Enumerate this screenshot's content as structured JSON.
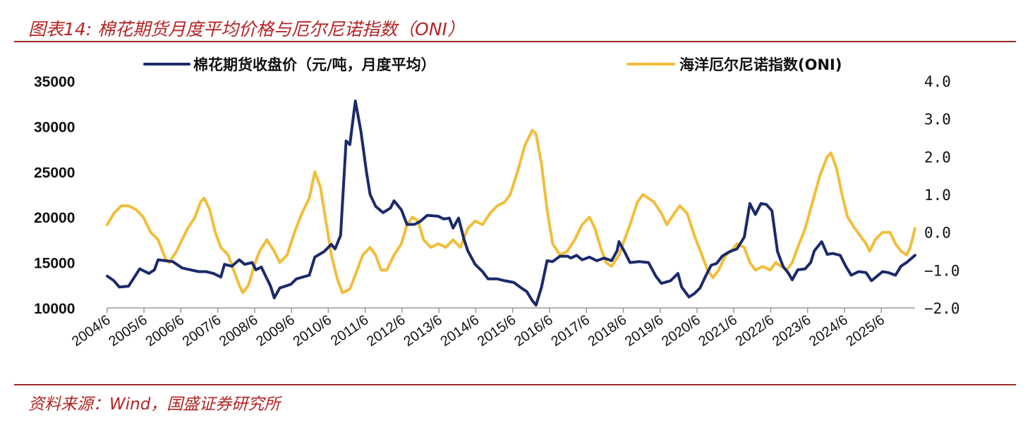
{
  "header": {
    "title": "图表14:  棉花期货月度平均价格与厄尔尼诺指数（ONI）"
  },
  "footer": {
    "source": "资料来源：Wind，国盛证券研究所"
  },
  "colors": {
    "cotton": "#1b2a6b",
    "oni": "#f2bd3a",
    "rule": "#9b2a2a",
    "title": "#b32424"
  },
  "chart_data": {
    "type": "line",
    "title": "",
    "legend_position": "top",
    "grid": false,
    "y_left": {
      "range": [
        10000,
        35000
      ],
      "ticks": [
        "35000",
        "30000",
        "25000",
        "20000",
        "15000",
        "10000"
      ]
    },
    "y_right": {
      "range": [
        -2.0,
        4.0
      ],
      "ticks": [
        "4.0",
        "3.0",
        "2.0",
        "1.0",
        "0.0",
        "−1.0",
        "−2.0"
      ]
    },
    "x_range": [
      2004.42,
      2026.33
    ],
    "x_ticks": [
      "2004/6",
      "2005/6",
      "2006/6",
      "2007/6",
      "2008/6",
      "2009/6",
      "2010/6",
      "2011/6",
      "2012/6",
      "2013/6",
      "2014/6",
      "2015/6",
      "2016/6",
      "2017/6",
      "2018/6",
      "2019/6",
      "2020/6",
      "2021/6",
      "2022/6",
      "2023/6",
      "2024/6",
      "2025/6"
    ],
    "series": [
      {
        "name": "棉花期货收盘价（元/吨，月度平均）",
        "axis": "left",
        "points": [
          [
            2004.42,
            13500
          ],
          [
            2004.6,
            13000
          ],
          [
            2004.75,
            12300
          ],
          [
            2005.0,
            12400
          ],
          [
            2005.3,
            14300
          ],
          [
            2005.55,
            13800
          ],
          [
            2005.7,
            14200
          ],
          [
            2005.8,
            15300
          ],
          [
            2006.0,
            15200
          ],
          [
            2006.2,
            15100
          ],
          [
            2006.45,
            14400
          ],
          [
            2006.9,
            14000
          ],
          [
            2007.1,
            14000
          ],
          [
            2007.3,
            13800
          ],
          [
            2007.5,
            13400
          ],
          [
            2007.6,
            14800
          ],
          [
            2007.8,
            14600
          ],
          [
            2008.0,
            15300
          ],
          [
            2008.15,
            14800
          ],
          [
            2008.35,
            15000
          ],
          [
            2008.45,
            14200
          ],
          [
            2008.6,
            14500
          ],
          [
            2008.85,
            12400
          ],
          [
            2008.95,
            11100
          ],
          [
            2009.1,
            12200
          ],
          [
            2009.4,
            12600
          ],
          [
            2009.55,
            13200
          ],
          [
            2009.9,
            13600
          ],
          [
            2010.05,
            15600
          ],
          [
            2010.3,
            16200
          ],
          [
            2010.5,
            17000
          ],
          [
            2010.6,
            16500
          ],
          [
            2010.75,
            18000
          ],
          [
            2010.9,
            28400
          ],
          [
            2011.0,
            28000
          ],
          [
            2011.15,
            32800
          ],
          [
            2011.3,
            29500
          ],
          [
            2011.45,
            25000
          ],
          [
            2011.55,
            22500
          ],
          [
            2011.7,
            21200
          ],
          [
            2011.9,
            20500
          ],
          [
            2012.1,
            21000
          ],
          [
            2012.2,
            21800
          ],
          [
            2012.4,
            20800
          ],
          [
            2012.55,
            19200
          ],
          [
            2012.75,
            19200
          ],
          [
            2012.9,
            19500
          ],
          [
            2013.1,
            20200
          ],
          [
            2013.4,
            20100
          ],
          [
            2013.55,
            19800
          ],
          [
            2013.7,
            19900
          ],
          [
            2013.8,
            18800
          ],
          [
            2013.95,
            19900
          ],
          [
            2014.1,
            17500
          ],
          [
            2014.2,
            16300
          ],
          [
            2014.4,
            14800
          ],
          [
            2014.6,
            14000
          ],
          [
            2014.75,
            13200
          ],
          [
            2015.0,
            13200
          ],
          [
            2015.2,
            13000
          ],
          [
            2015.45,
            12800
          ],
          [
            2015.65,
            12200
          ],
          [
            2015.8,
            11800
          ],
          [
            2015.95,
            10800
          ],
          [
            2016.05,
            10300
          ],
          [
            2016.2,
            12300
          ],
          [
            2016.35,
            15200
          ],
          [
            2016.5,
            15100
          ],
          [
            2016.7,
            15700
          ],
          [
            2016.9,
            15700
          ],
          [
            2017.0,
            15500
          ],
          [
            2017.15,
            15800
          ],
          [
            2017.3,
            15300
          ],
          [
            2017.5,
            15600
          ],
          [
            2017.7,
            15200
          ],
          [
            2017.9,
            15500
          ],
          [
            2018.1,
            15200
          ],
          [
            2018.25,
            16300
          ],
          [
            2018.3,
            17300
          ],
          [
            2018.45,
            16200
          ],
          [
            2018.6,
            15000
          ],
          [
            2018.85,
            15100
          ],
          [
            2019.1,
            15000
          ],
          [
            2019.3,
            13500
          ],
          [
            2019.45,
            12700
          ],
          [
            2019.7,
            13000
          ],
          [
            2019.9,
            13800
          ],
          [
            2020.0,
            12300
          ],
          [
            2020.2,
            11200
          ],
          [
            2020.35,
            11600
          ],
          [
            2020.5,
            12200
          ],
          [
            2020.65,
            13500
          ],
          [
            2020.8,
            14700
          ],
          [
            2020.95,
            14900
          ],
          [
            2021.1,
            15700
          ],
          [
            2021.3,
            16200
          ],
          [
            2021.5,
            16500
          ],
          [
            2021.7,
            17800
          ],
          [
            2021.85,
            21500
          ],
          [
            2022.0,
            20300
          ],
          [
            2022.15,
            21500
          ],
          [
            2022.3,
            21400
          ],
          [
            2022.45,
            20700
          ],
          [
            2022.6,
            16200
          ],
          [
            2022.75,
            14600
          ],
          [
            2022.9,
            13800
          ],
          [
            2023.0,
            13100
          ],
          [
            2023.15,
            14200
          ],
          [
            2023.35,
            14300
          ],
          [
            2023.5,
            15000
          ],
          [
            2023.6,
            16300
          ],
          [
            2023.8,
            17300
          ],
          [
            2023.95,
            15900
          ],
          [
            2024.1,
            16000
          ],
          [
            2024.3,
            15800
          ],
          [
            2024.45,
            14600
          ],
          [
            2024.6,
            13600
          ],
          [
            2024.8,
            14000
          ],
          [
            2025.0,
            13900
          ],
          [
            2025.15,
            13000
          ],
          [
            2025.3,
            13500
          ],
          [
            2025.45,
            14000
          ],
          [
            2025.6,
            13900
          ],
          [
            2025.8,
            13600
          ],
          [
            2025.95,
            14600
          ],
          [
            2026.1,
            15000
          ],
          [
            2026.33,
            15800
          ]
        ]
      },
      {
        "name": "海洋厄尔尼诺指数(ONI)",
        "axis": "right",
        "points": [
          [
            2004.42,
            0.2
          ],
          [
            2004.6,
            0.5
          ],
          [
            2004.8,
            0.7
          ],
          [
            2005.0,
            0.7
          ],
          [
            2005.2,
            0.6
          ],
          [
            2005.4,
            0.4
          ],
          [
            2005.6,
            0.0
          ],
          [
            2005.8,
            -0.2
          ],
          [
            2006.0,
            -0.7
          ],
          [
            2006.1,
            -0.8
          ],
          [
            2006.3,
            -0.5
          ],
          [
            2006.45,
            -0.2
          ],
          [
            2006.6,
            0.1
          ],
          [
            2006.8,
            0.4
          ],
          [
            2006.95,
            0.8
          ],
          [
            2007.05,
            0.9
          ],
          [
            2007.2,
            0.6
          ],
          [
            2007.35,
            0.0
          ],
          [
            2007.5,
            -0.4
          ],
          [
            2007.7,
            -0.6
          ],
          [
            2007.85,
            -1.0
          ],
          [
            2008.0,
            -1.4
          ],
          [
            2008.1,
            -1.6
          ],
          [
            2008.25,
            -1.4
          ],
          [
            2008.4,
            -0.9
          ],
          [
            2008.55,
            -0.5
          ],
          [
            2008.75,
            -0.2
          ],
          [
            2008.95,
            -0.5
          ],
          [
            2009.1,
            -0.8
          ],
          [
            2009.3,
            -0.6
          ],
          [
            2009.5,
            0.0
          ],
          [
            2009.7,
            0.5
          ],
          [
            2009.9,
            0.9
          ],
          [
            2010.05,
            1.6
          ],
          [
            2010.2,
            1.2
          ],
          [
            2010.35,
            0.3
          ],
          [
            2010.5,
            -0.6
          ],
          [
            2010.65,
            -1.2
          ],
          [
            2010.8,
            -1.6
          ],
          [
            2011.0,
            -1.5
          ],
          [
            2011.2,
            -1.0
          ],
          [
            2011.35,
            -0.6
          ],
          [
            2011.55,
            -0.4
          ],
          [
            2011.7,
            -0.6
          ],
          [
            2011.85,
            -1.0
          ],
          [
            2012.0,
            -1.0
          ],
          [
            2012.2,
            -0.6
          ],
          [
            2012.4,
            -0.3
          ],
          [
            2012.55,
            0.2
          ],
          [
            2012.7,
            0.4
          ],
          [
            2012.85,
            0.3
          ],
          [
            2013.0,
            -0.2
          ],
          [
            2013.2,
            -0.4
          ],
          [
            2013.4,
            -0.3
          ],
          [
            2013.6,
            -0.4
          ],
          [
            2013.8,
            -0.2
          ],
          [
            2014.0,
            -0.4
          ],
          [
            2014.2,
            0.1
          ],
          [
            2014.4,
            0.3
          ],
          [
            2014.6,
            0.2
          ],
          [
            2014.8,
            0.5
          ],
          [
            2015.0,
            0.7
          ],
          [
            2015.2,
            0.8
          ],
          [
            2015.35,
            1.0
          ],
          [
            2015.55,
            1.6
          ],
          [
            2015.75,
            2.3
          ],
          [
            2015.95,
            2.7
          ],
          [
            2016.05,
            2.6
          ],
          [
            2016.2,
            1.8
          ],
          [
            2016.35,
            0.6
          ],
          [
            2016.5,
            -0.3
          ],
          [
            2016.7,
            -0.6
          ],
          [
            2016.9,
            -0.5
          ],
          [
            2017.1,
            -0.2
          ],
          [
            2017.3,
            0.2
          ],
          [
            2017.5,
            0.4
          ],
          [
            2017.65,
            0.1
          ],
          [
            2017.8,
            -0.4
          ],
          [
            2017.95,
            -0.8
          ],
          [
            2018.1,
            -0.9
          ],
          [
            2018.3,
            -0.6
          ],
          [
            2018.45,
            -0.2
          ],
          [
            2018.6,
            0.2
          ],
          [
            2018.8,
            0.8
          ],
          [
            2018.95,
            1.0
          ],
          [
            2019.1,
            0.9
          ],
          [
            2019.25,
            0.8
          ],
          [
            2019.45,
            0.5
          ],
          [
            2019.6,
            0.2
          ],
          [
            2019.8,
            0.5
          ],
          [
            2019.95,
            0.7
          ],
          [
            2020.15,
            0.5
          ],
          [
            2020.35,
            -0.1
          ],
          [
            2020.55,
            -0.6
          ],
          [
            2020.7,
            -1.0
          ],
          [
            2020.85,
            -1.2
          ],
          [
            2021.0,
            -1.0
          ],
          [
            2021.2,
            -0.6
          ],
          [
            2021.35,
            -0.5
          ],
          [
            2021.5,
            -0.3
          ],
          [
            2021.7,
            -0.4
          ],
          [
            2021.85,
            -0.8
          ],
          [
            2022.0,
            -1.0
          ],
          [
            2022.2,
            -0.9
          ],
          [
            2022.4,
            -1.0
          ],
          [
            2022.55,
            -0.8
          ],
          [
            2022.7,
            -0.9
          ],
          [
            2022.85,
            -1.0
          ],
          [
            2023.0,
            -0.8
          ],
          [
            2023.15,
            -0.4
          ],
          [
            2023.35,
            0.1
          ],
          [
            2023.55,
            0.8
          ],
          [
            2023.75,
            1.5
          ],
          [
            2023.95,
            2.0
          ],
          [
            2024.05,
            2.1
          ],
          [
            2024.2,
            1.7
          ],
          [
            2024.35,
            1.0
          ],
          [
            2024.5,
            0.4
          ],
          [
            2024.7,
            0.1
          ],
          [
            2024.85,
            -0.1
          ],
          [
            2025.0,
            -0.3
          ],
          [
            2025.1,
            -0.5
          ],
          [
            2025.25,
            -0.2
          ],
          [
            2025.45,
            0.0
          ],
          [
            2025.65,
            0.0
          ],
          [
            2025.8,
            -0.3
          ],
          [
            2025.95,
            -0.5
          ],
          [
            2026.1,
            -0.6
          ],
          [
            2026.2,
            -0.4
          ],
          [
            2026.33,
            0.1
          ]
        ]
      }
    ]
  }
}
